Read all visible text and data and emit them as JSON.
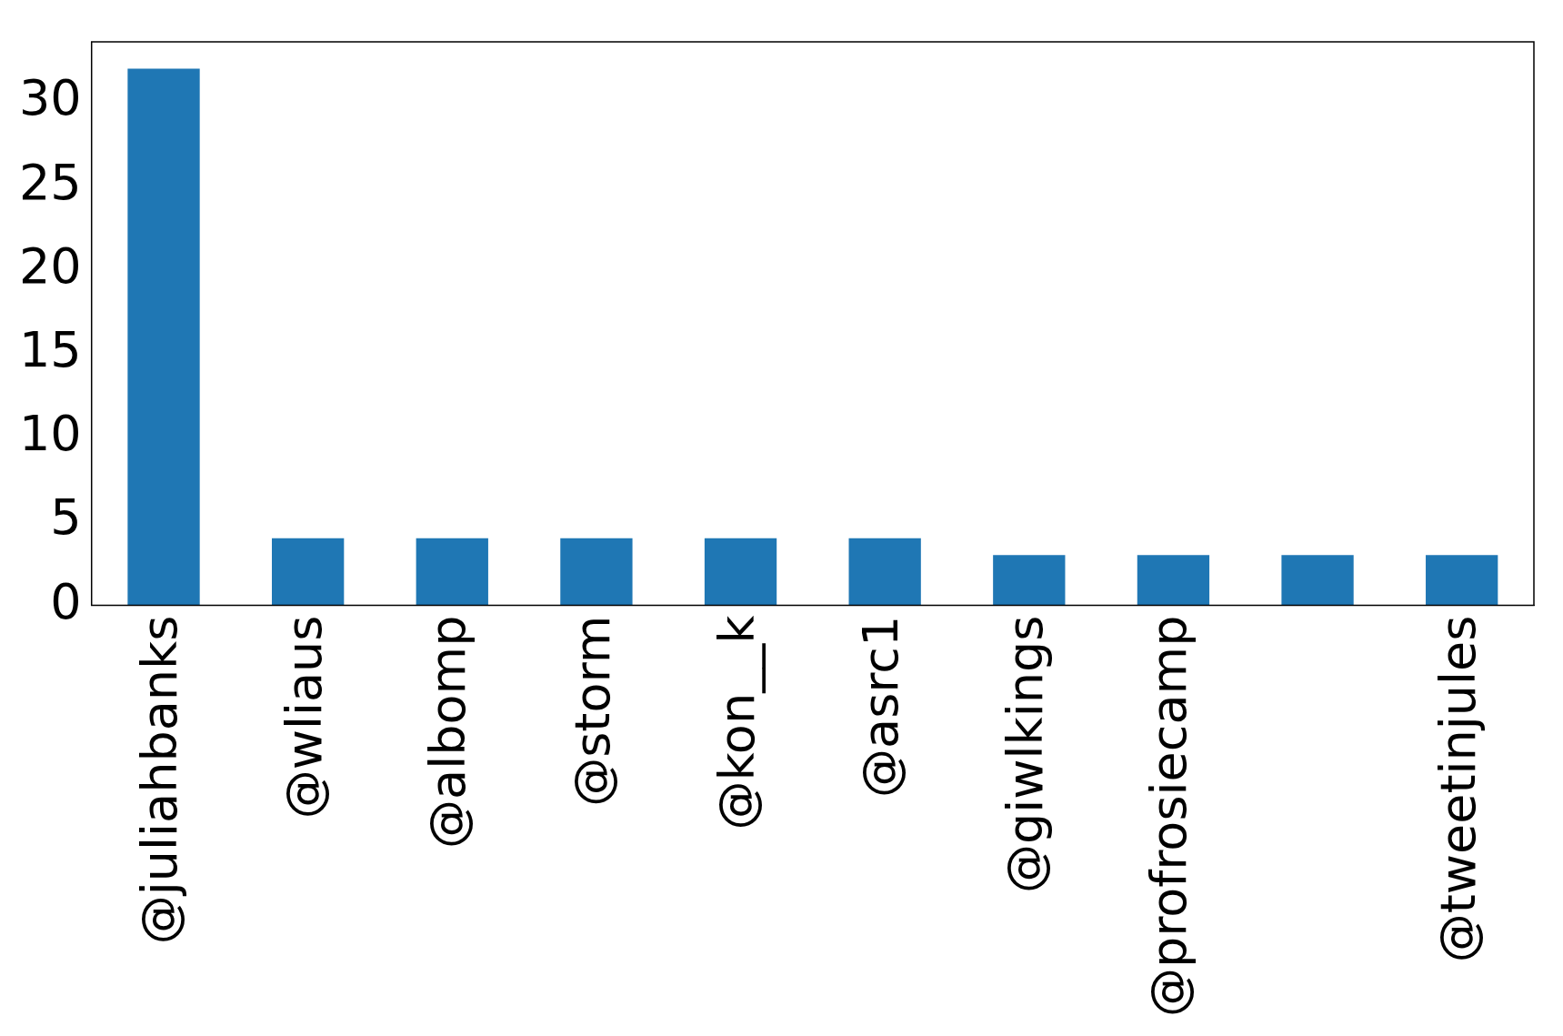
{
  "chart_data": {
    "type": "bar",
    "categories": [
      "@juliahbanks",
      "@wliaus",
      "@albomp",
      "@storm",
      "@kon__k",
      "@asrc1",
      "@giwlkings",
      "@profrosiecamp",
      null,
      "@tweetinjules"
    ],
    "values": [
      32,
      4,
      4,
      4,
      4,
      4,
      3,
      3,
      3,
      3
    ],
    "color": "#1f77b4",
    "ylim": [
      0,
      33.6
    ],
    "yticks": [
      0,
      5,
      10,
      15,
      20,
      25,
      30
    ],
    "grid": false,
    "legend": false
  }
}
